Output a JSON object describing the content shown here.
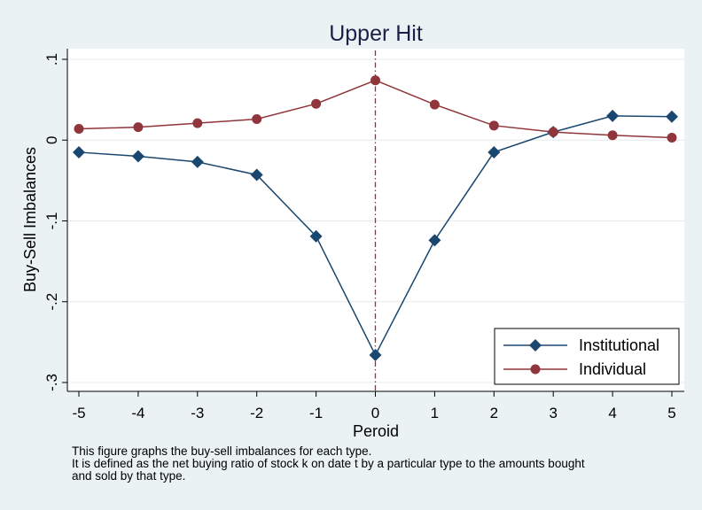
{
  "chart_data": {
    "type": "line",
    "title": "Upper Hit",
    "xlabel": "Peroid",
    "ylabel": "Buy-Sell Imbalances",
    "x": [
      -5,
      -4,
      -3,
      -2,
      -1,
      0,
      1,
      2,
      3,
      4,
      5
    ],
    "xticks": [
      "-5",
      "-4",
      "-3",
      "-2",
      "-1",
      "0",
      "1",
      "2",
      "3",
      "4",
      "5"
    ],
    "yticks": [
      {
        "value": 0.1,
        "label": ".1"
      },
      {
        "value": 0,
        "label": "0"
      },
      {
        "value": -0.1,
        "label": "-.1"
      },
      {
        "value": -0.2,
        "label": "-.2"
      },
      {
        "value": -0.3,
        "label": "-.3"
      }
    ],
    "xlim": [
      -5,
      5
    ],
    "ylim": [
      -0.3,
      0.1
    ],
    "grid": true,
    "legend_position": "bottom-right",
    "reference_line_x": 0,
    "reference_line_color": "#b0203a",
    "series": [
      {
        "name": "Institutional",
        "marker": "diamond",
        "color": "#1a476f",
        "values": [
          -0.015,
          -0.02,
          -0.027,
          -0.043,
          -0.119,
          -0.266,
          -0.124,
          -0.015,
          0.01,
          0.03,
          0.029
        ]
      },
      {
        "name": "Individual",
        "marker": "circle",
        "color": "#90353b",
        "values": [
          0.014,
          0.016,
          0.021,
          0.026,
          0.045,
          0.074,
          0.044,
          0.018,
          0.01,
          0.006,
          0.003
        ]
      }
    ]
  },
  "note": [
    "This figure graphs the buy-sell imbalances for each type.",
    "It is defined as the net buying ratio of stock k on date t by a particular type to the amounts bought",
    "and sold by that type."
  ]
}
